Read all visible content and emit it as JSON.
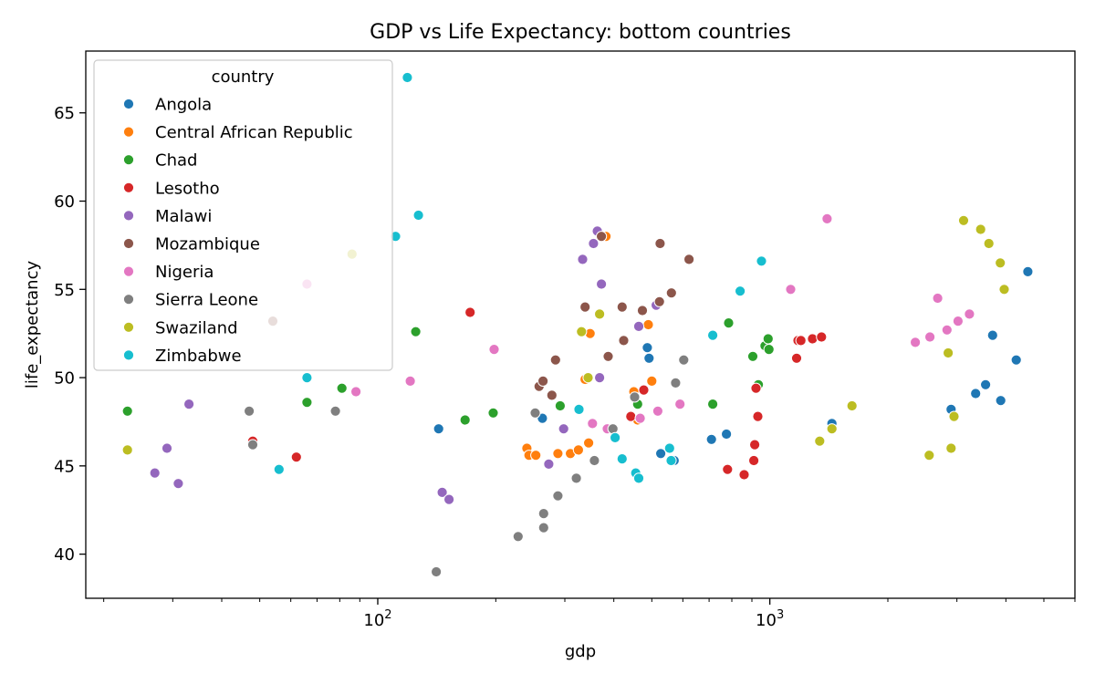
{
  "chart_data": {
    "type": "scatter",
    "title": "GDP vs Life Expectancy: bottom countries",
    "xlabel": "gdp",
    "ylabel": "life_expectancy",
    "xscale": "log",
    "xlim": [
      18,
      6000
    ],
    "ylim": [
      37.5,
      68.5
    ],
    "xticks": [
      {
        "value": 100,
        "base": "10",
        "exp": "2"
      },
      {
        "value": 1000,
        "base": "10",
        "exp": "3"
      }
    ],
    "yticks": [
      40,
      45,
      50,
      55,
      60,
      65
    ],
    "grid": false,
    "legend": {
      "title": "country",
      "position": "top-left"
    },
    "series": [
      {
        "name": "Angola",
        "color": "#1f77b4",
        "points": [
          [
            143,
            47.1
          ],
          [
            263,
            47.7
          ],
          [
            487,
            51.7
          ],
          [
            492,
            51.1
          ],
          [
            527,
            45.7
          ],
          [
            710,
            46.5
          ],
          [
            775,
            46.8
          ],
          [
            1440,
            47.4
          ],
          [
            2900,
            48.2
          ],
          [
            3350,
            49.1
          ],
          [
            3550,
            49.6
          ],
          [
            3700,
            52.4
          ],
          [
            3880,
            48.7
          ],
          [
            4250,
            51.0
          ],
          [
            4550,
            56.0
          ],
          [
            570,
            45.3
          ]
        ]
      },
      {
        "name": "Central African Republic",
        "color": "#ff7f0e",
        "points": [
          [
            240,
            46.0
          ],
          [
            243,
            45.6
          ],
          [
            253,
            45.6
          ],
          [
            288,
            45.7
          ],
          [
            310,
            45.7
          ],
          [
            325,
            45.9
          ],
          [
            338,
            49.9
          ],
          [
            345,
            46.3
          ],
          [
            348,
            52.5
          ],
          [
            382,
            58.0
          ],
          [
            450,
            49.2
          ],
          [
            460,
            47.6
          ],
          [
            490,
            53.0
          ],
          [
            500,
            49.8
          ]
        ]
      },
      {
        "name": "Chad",
        "color": "#2ca02c",
        "points": [
          [
            23,
            48.1
          ],
          [
            66,
            48.6
          ],
          [
            81,
            49.4
          ],
          [
            125,
            52.6
          ],
          [
            167,
            47.6
          ],
          [
            197,
            48.0
          ],
          [
            292,
            48.4
          ],
          [
            460,
            48.5
          ],
          [
            715,
            48.5
          ],
          [
            785,
            53.1
          ],
          [
            905,
            51.2
          ],
          [
            935,
            49.6
          ],
          [
            972,
            51.8
          ],
          [
            990,
            52.2
          ],
          [
            995,
            51.6
          ]
        ]
      },
      {
        "name": "Lesotho",
        "color": "#d62728",
        "points": [
          [
            48,
            46.4
          ],
          [
            62,
            45.5
          ],
          [
            172,
            53.7
          ],
          [
            442,
            47.8
          ],
          [
            477,
            49.3
          ],
          [
            780,
            44.8
          ],
          [
            860,
            44.5
          ],
          [
            910,
            45.3
          ],
          [
            915,
            46.2
          ],
          [
            922,
            49.4
          ],
          [
            932,
            47.8
          ],
          [
            1170,
            51.1
          ],
          [
            1180,
            52.1
          ],
          [
            1200,
            52.1
          ],
          [
            1285,
            52.2
          ],
          [
            1355,
            52.3
          ]
        ]
      },
      {
        "name": "Malawi",
        "color": "#9467bd",
        "points": [
          [
            27,
            44.6
          ],
          [
            29,
            46.0
          ],
          [
            31,
            44.0
          ],
          [
            33,
            48.5
          ],
          [
            146,
            43.5
          ],
          [
            152,
            43.1
          ],
          [
            273,
            45.1
          ],
          [
            298,
            47.1
          ],
          [
            333,
            56.7
          ],
          [
            355,
            57.6
          ],
          [
            363,
            58.3
          ],
          [
            368,
            50.0
          ],
          [
            372,
            55.3
          ],
          [
            463,
            52.9
          ],
          [
            513,
            54.1
          ]
        ]
      },
      {
        "name": "Mozambique",
        "color": "#8c564b",
        "points": [
          [
            54,
            53.2
          ],
          [
            258,
            49.5
          ],
          [
            264,
            49.8
          ],
          [
            278,
            49.0
          ],
          [
            284,
            51.0
          ],
          [
            338,
            54.0
          ],
          [
            372,
            58.0
          ],
          [
            387,
            51.2
          ],
          [
            420,
            54.0
          ],
          [
            424,
            52.1
          ],
          [
            473,
            53.8
          ],
          [
            523,
            54.3
          ],
          [
            525,
            57.6
          ],
          [
            561,
            54.8
          ],
          [
            622,
            56.7
          ]
        ]
      },
      {
        "name": "Nigeria",
        "color": "#e377c2",
        "points": [
          [
            66,
            55.3
          ],
          [
            88,
            49.2
          ],
          [
            121,
            49.8
          ],
          [
            198,
            51.6
          ],
          [
            353,
            47.4
          ],
          [
            385,
            47.1
          ],
          [
            467,
            47.7
          ],
          [
            518,
            48.1
          ],
          [
            590,
            48.5
          ],
          [
            1130,
            55.0
          ],
          [
            1400,
            59.0
          ],
          [
            2350,
            52.0
          ],
          [
            2560,
            52.3
          ],
          [
            2680,
            54.5
          ],
          [
            2830,
            52.7
          ],
          [
            3020,
            53.2
          ],
          [
            3230,
            53.6
          ]
        ]
      },
      {
        "name": "Sierra Leone",
        "color": "#7f7f7f",
        "points": [
          [
            47,
            48.1
          ],
          [
            48,
            46.2
          ],
          [
            78,
            48.1
          ],
          [
            141,
            39.0
          ],
          [
            228,
            41.0
          ],
          [
            252,
            48.0
          ],
          [
            265,
            42.3
          ],
          [
            265,
            41.5
          ],
          [
            288,
            43.3
          ],
          [
            321,
            44.3
          ],
          [
            357,
            45.3
          ],
          [
            398,
            47.1
          ],
          [
            452,
            48.9
          ],
          [
            575,
            49.7
          ],
          [
            603,
            51.0
          ]
        ]
      },
      {
        "name": "Swaziland",
        "color": "#bcbd22",
        "points": [
          [
            23,
            45.9
          ],
          [
            86,
            57.0
          ],
          [
            331,
            52.6
          ],
          [
            344,
            50.0
          ],
          [
            368,
            53.6
          ],
          [
            1340,
            46.4
          ],
          [
            1440,
            47.1
          ],
          [
            1620,
            48.4
          ],
          [
            2550,
            45.6
          ],
          [
            2850,
            51.4
          ],
          [
            2900,
            46.0
          ],
          [
            2950,
            47.8
          ],
          [
            3120,
            58.9
          ],
          [
            3450,
            58.4
          ],
          [
            3620,
            57.6
          ],
          [
            3870,
            56.5
          ],
          [
            3960,
            55.0
          ]
        ]
      },
      {
        "name": "Zimbabwe",
        "color": "#17becf",
        "points": [
          [
            56,
            44.8
          ],
          [
            66,
            50.0
          ],
          [
            111,
            58.0
          ],
          [
            119,
            67.0
          ],
          [
            127,
            59.2
          ],
          [
            326,
            48.2
          ],
          [
            403,
            46.6
          ],
          [
            420,
            45.4
          ],
          [
            455,
            44.6
          ],
          [
            463,
            44.3
          ],
          [
            555,
            46.0
          ],
          [
            560,
            45.3
          ],
          [
            715,
            52.4
          ],
          [
            840,
            54.9
          ],
          [
            952,
            56.6
          ]
        ]
      }
    ]
  }
}
